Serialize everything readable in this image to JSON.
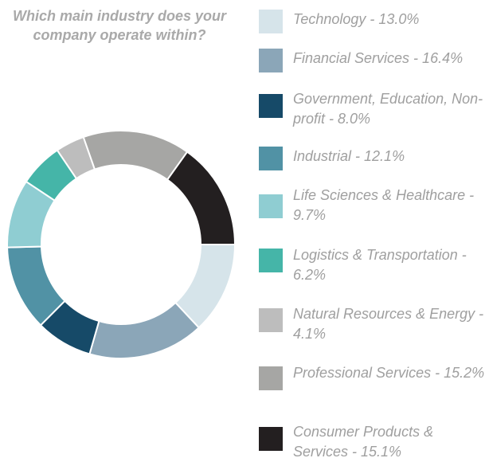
{
  "chart_data": {
    "type": "donut",
    "title": "Which main industry does your company operate within?",
    "categories": [
      "Technology - 13.0%",
      "Financial Services - 16.4%",
      "Government, Education, Non-profit - 8.0%",
      "Industrial - 12.1%",
      "Life Sciences & Healthcare - 9.7%",
      "Logistics & Transportation - 6.2%",
      "Natural Resources & Energy - 4.1%",
      "Professional Services - 15.2%",
      "Consumer Products & Services - 15.1%"
    ],
    "values": [
      13.0,
      16.4,
      8.0,
      12.1,
      9.7,
      6.2,
      4.1,
      15.2,
      15.1
    ],
    "colors": [
      "#d6e4ea",
      "#8ba6b8",
      "#164a68",
      "#5192a5",
      "#8fcdd2",
      "#45b5a8",
      "#bdbdbd",
      "#a6a6a4",
      "#231f20"
    ]
  }
}
